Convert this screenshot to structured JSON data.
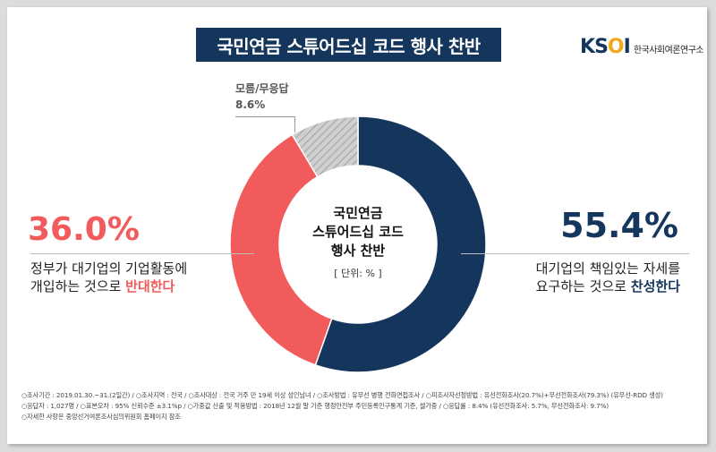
{
  "title": "국민연금 스튜어드십 코드 행사 찬반",
  "logo": {
    "mark_k": "K",
    "mark_s": "S",
    "mark_o": "O",
    "mark_i": "I",
    "subtitle": "한국사회여론연구소"
  },
  "center": {
    "title_line1": "국민연금",
    "title_line2": "스튜어드십 코드",
    "title_line3": "행사 찬반",
    "unit": "[ 단위: % ]"
  },
  "left": {
    "pct": "36.0%",
    "desc_line1": "정부가 대기업의 기업활동에",
    "desc_line2_pre": "개입하는 것으로 ",
    "desc_line2_hl": "반대한다"
  },
  "right": {
    "pct": "55.4%",
    "desc_line1": "대기업의 책임있는 자세를",
    "desc_line2_pre": "요구하는 것으로 ",
    "desc_line2_hl": "찬성한다"
  },
  "dontknow": {
    "label": "모름/무응답",
    "value": "8.6%"
  },
  "chart_data": {
    "type": "pie",
    "title": "국민연금 스튜어드십 코드 행사 찬반",
    "unit": "%",
    "slices": [
      {
        "label": "찬성한다",
        "value": 55.4,
        "color": "#14365c"
      },
      {
        "label": "반대한다",
        "value": 36.0,
        "color": "#f25b5b"
      },
      {
        "label": "모름/무응답",
        "value": 8.6,
        "color": "#cccccc"
      }
    ]
  },
  "footer": {
    "line1": "○조사기간 : 2019.01.30.~31.(2일간) / ○조사지역 : 전국 / ○조사대상 : 전국 거주 만 19세 이상 성인남녀 / ○조사방법 : 유무선 병행 전화면접조사 / ○피조사자선정방법 : 유선전화조사(20.7%)+무선전화조사(79.3%) (유무선-RDD 생성)",
    "line2": "○응답자 : 1,027명 / ○표본오차 : 95% 신뢰수준 ±3.1%p / ○가중값 산출 및 적용방법 : 2018년 12월 말 기준 행정안전부 주민등록인구통계 기준, 셀가중 / ○응답률 : 8.4% (유선전화조사: 5.7%, 무선전화조사: 9.7%)",
    "line3": "○자세한 사항은 중앙선거여론조사심의위원회 홈페이지 참조"
  }
}
